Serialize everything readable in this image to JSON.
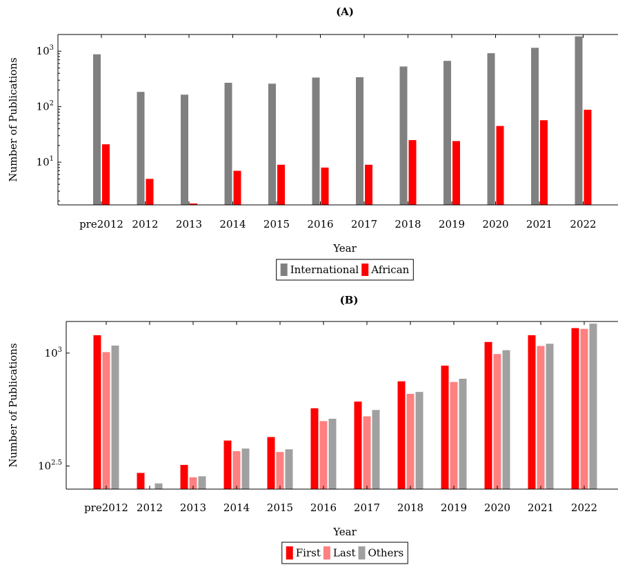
{
  "chart_data": [
    {
      "type": "bar",
      "title": "(A)",
      "xlabel": "Year",
      "ylabel": "Number of Publications",
      "yscale": "log",
      "ylim": [
        1.7,
        2000
      ],
      "yticks": [
        {
          "base": "10",
          "exp": "1",
          "value": 10
        },
        {
          "base": "10",
          "exp": "2",
          "value": 100
        },
        {
          "base": "10",
          "exp": "3",
          "value": 1000
        }
      ],
      "categories": [
        "pre2012",
        "2012",
        "2013",
        "2014",
        "2015",
        "2016",
        "2017",
        "2018",
        "2019",
        "2020",
        "2021",
        "2022"
      ],
      "series": [
        {
          "name": "International",
          "color": "#808080",
          "values": [
            880,
            185,
            165,
            270,
            260,
            335,
            340,
            530,
            670,
            920,
            1150,
            1850
          ]
        },
        {
          "name": "African",
          "color": "#ff0000",
          "values": [
            21,
            5,
            1.8,
            7,
            9,
            8,
            9,
            25,
            24,
            45,
            57,
            88
          ]
        }
      ],
      "legend": "bottom-center"
    },
    {
      "type": "bar",
      "title": "(B)",
      "xlabel": "Year",
      "ylabel": "Number of Publications",
      "yscale": "log",
      "ylim": [
        250,
        1380
      ],
      "yticks": [
        {
          "base": "10",
          "exp": "2.5",
          "value": 316.23
        },
        {
          "base": "10",
          "exp": "3",
          "value": 1000
        }
      ],
      "categories": [
        "pre2012",
        "2012",
        "2013",
        "2014",
        "2015",
        "2016",
        "2017",
        "2018",
        "2019",
        "2020",
        "2021",
        "2022"
      ],
      "series": [
        {
          "name": "First",
          "color": "#ff0000",
          "values": [
            1200,
            295,
            320,
            410,
            425,
            570,
            610,
            750,
            880,
            1120,
            1200,
            1290
          ]
        },
        {
          "name": "Last",
          "color": "#ff8080",
          "values": [
            1010,
            250,
            282,
            368,
            365,
            500,
            525,
            660,
            745,
            990,
            1075,
            1280
          ]
        },
        {
          "name": "Others",
          "color": "#a0a0a0",
          "values": [
            1080,
            265,
            285,
            378,
            375,
            512,
            560,
            673,
            770,
            1030,
            1100,
            1350
          ]
        }
      ],
      "legend": "bottom-center"
    }
  ]
}
